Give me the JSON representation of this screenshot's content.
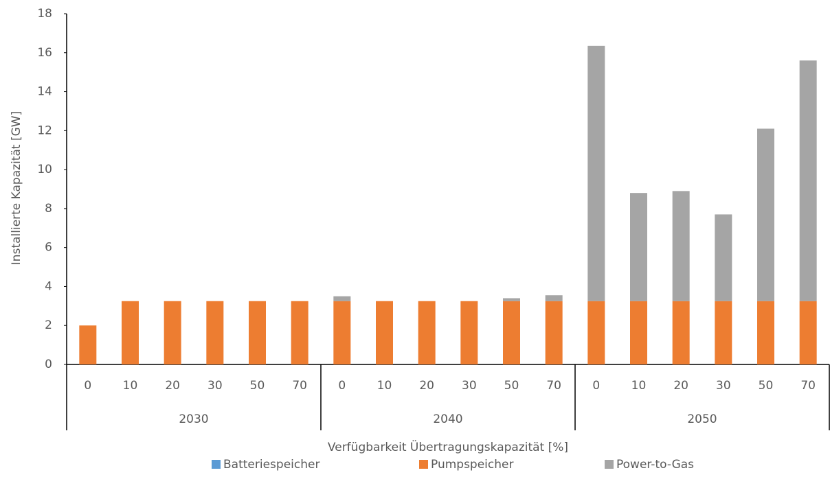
{
  "chart_data": {
    "type": "stacked_bar",
    "y_label": "Installierte Kapazität [GW]",
    "x_label": "Verfügbarkeit Übertragungskapazität [%]",
    "groups": [
      {
        "name": "2030",
        "categories": [
          "0",
          "10",
          "20",
          "30",
          "50",
          "70"
        ]
      },
      {
        "name": "2040",
        "categories": [
          "0",
          "10",
          "20",
          "30",
          "50",
          "70"
        ]
      },
      {
        "name": "2050",
        "categories": [
          "0",
          "10",
          "20",
          "30",
          "50",
          "70"
        ]
      }
    ],
    "series": [
      {
        "name": "Batteriespeicher",
        "color": "#5b9bd5",
        "values": [
          0,
          0,
          0,
          0,
          0,
          0,
          0,
          0,
          0,
          0,
          0,
          0,
          0,
          0,
          0,
          0,
          0,
          0
        ]
      },
      {
        "name": "Pumpspeicher",
        "color": "#ed7d31",
        "values": [
          2.0,
          3.25,
          3.25,
          3.25,
          3.25,
          3.25,
          3.25,
          3.25,
          3.25,
          3.25,
          3.25,
          3.25,
          3.25,
          3.25,
          3.25,
          3.25,
          3.25,
          3.25
        ]
      },
      {
        "name": "Power-to-Gas",
        "color": "#a5a5a5",
        "values": [
          0,
          0,
          0,
          0,
          0,
          0,
          0.25,
          0,
          0,
          0,
          0.15,
          0.3,
          13.1,
          5.55,
          5.65,
          4.45,
          8.85,
          12.35
        ]
      }
    ],
    "ylim": [
      0,
      18
    ],
    "yticks": [
      0,
      2,
      4,
      6,
      8,
      10,
      12,
      14,
      16,
      18
    ],
    "legend": "bottom"
  }
}
